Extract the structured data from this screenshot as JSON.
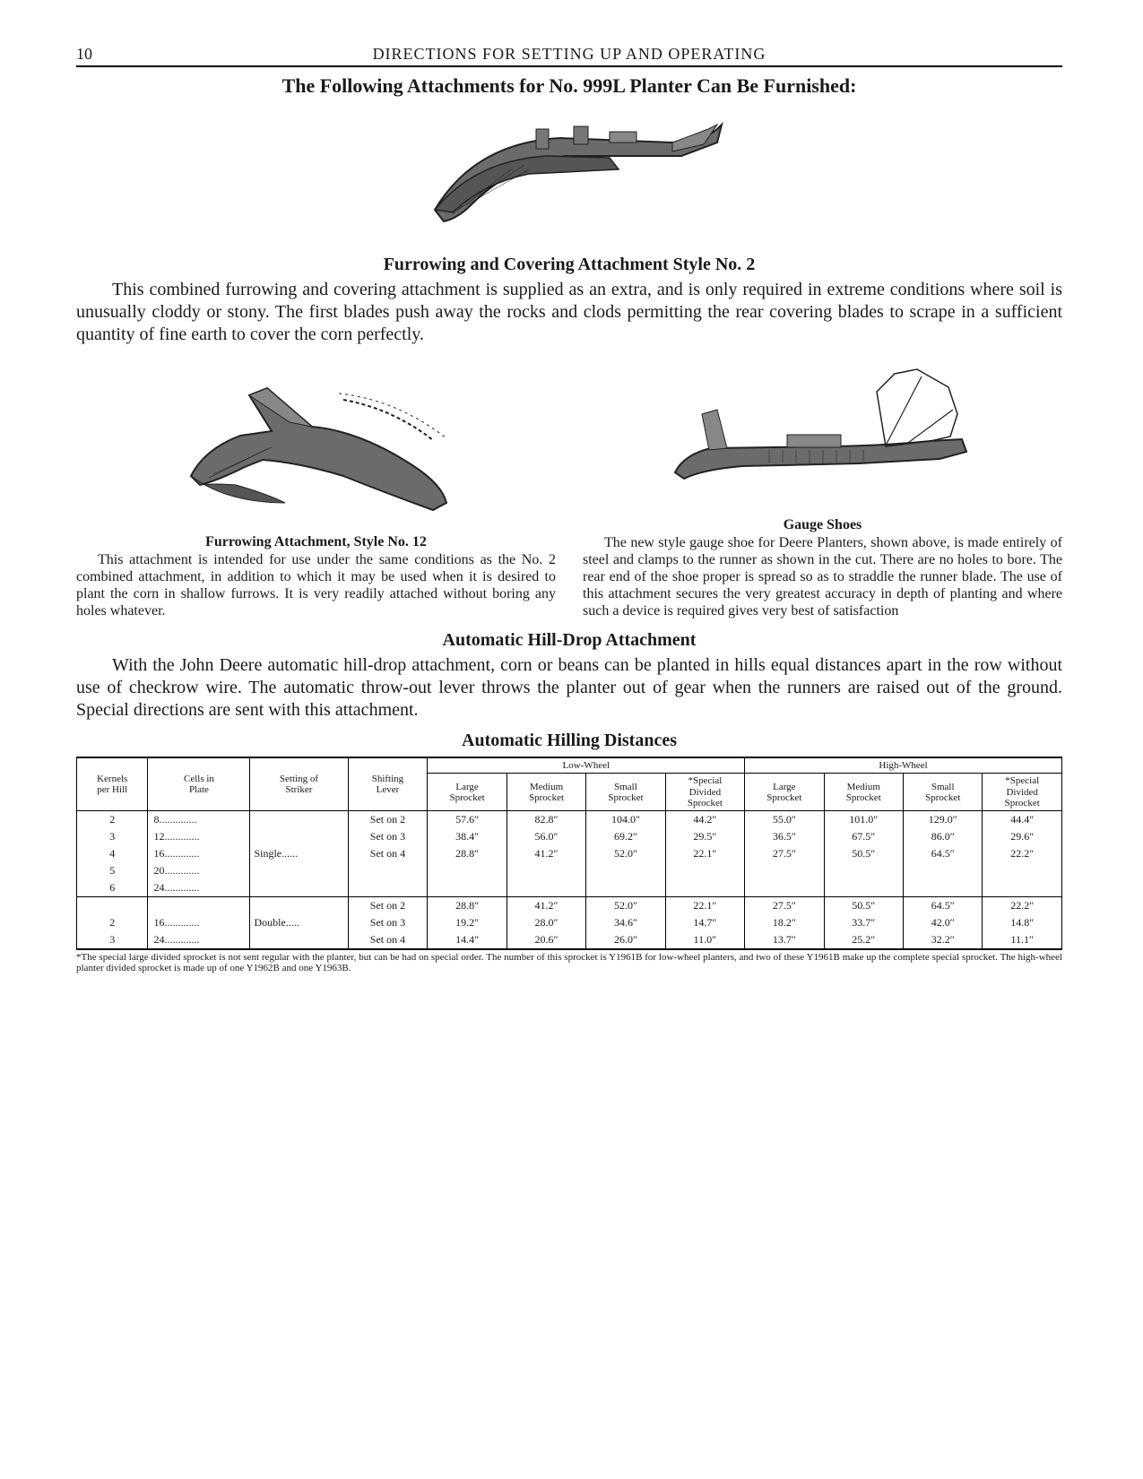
{
  "page_number": "10",
  "running_head": "DIRECTIONS FOR SETTING UP AND OPERATING",
  "title": "The Following Attachments for No. 999L Planter Can Be Furnished:",
  "furrowing2": {
    "heading": "Furrowing and Covering Attachment Style No. 2",
    "body": "This combined furrowing and covering attachment is supplied as an extra, and is only required in extreme conditions where soil is unusually cloddy or stony. The first blades push away the rocks and clods permitting the rear covering blades to scrape in a sufficient quantity of fine earth to cover the corn perfectly."
  },
  "furrowing12": {
    "heading": "Furrowing Attachment, Style No. 12",
    "body": "This attachment is intended for use under the same conditions as the No. 2 combined attachment, in addition to which it may be used when it is desired to plant the corn in shallow furrows. It is very readily attached without boring any holes whatever."
  },
  "gauge_shoes": {
    "heading": "Gauge Shoes",
    "body": "The new style gauge shoe for Deere Planters, shown above, is made entirely of steel and clamps to the runner as shown in the cut. There are no holes to bore. The rear end of the shoe proper is spread so as to straddle the runner blade. The use of this attachment secures the very greatest accuracy in depth of planting and where such a device is required gives very best of satisfaction"
  },
  "hilldrop": {
    "heading": "Automatic Hill-Drop Attachment",
    "body": "With the John Deere automatic hill-drop attachment, corn or beans can be planted in hills equal distances apart in the row without use of checkrow wire. The automatic throw-out lever throws the planter out of gear when the runners are raised out of the ground. Special directions are sent with this attachment."
  },
  "table": {
    "heading": "Automatic Hilling Distances",
    "col_headers": {
      "kernels": "Kernels\nper Hill",
      "cells": "Cells in\nPlate",
      "setting": "Setting of\nStriker",
      "lever": "Shifting\nLever",
      "low_group": "Low-Wheel",
      "high_group": "High-Wheel",
      "large": "Large\nSprocket",
      "medium": "Medium\nSprocket",
      "small": "Small\nSprocket",
      "special": "*Special\nDivided\nSprocket"
    },
    "groups": [
      {
        "setting": "Single......",
        "rows": [
          {
            "kernels": "2",
            "cells": "8..............",
            "lever": "Set on 2",
            "low": [
              "57.6″",
              "82.8″",
              "104.0″",
              "44.2″"
            ],
            "high": [
              "55.0″",
              "101.0″",
              "129.0″",
              "44.4″"
            ]
          },
          {
            "kernels": "3",
            "cells": "12.............",
            "lever": "Set on 3",
            "low": [
              "38.4″",
              "56.0″",
              "69.2″",
              "29.5″"
            ],
            "high": [
              "36.5″",
              "67.5″",
              "86.0″",
              "29.6″"
            ]
          },
          {
            "kernels": "4",
            "cells": "16.............",
            "lever": "Set on 4",
            "low": [
              "28.8″",
              "41.2″",
              "52.0″",
              "22.1″"
            ],
            "high": [
              "27.5″",
              "50.5″",
              "64.5″",
              "22.2″"
            ]
          },
          {
            "kernels": "5",
            "cells": "20.............",
            "lever": "",
            "low": [
              "",
              "",
              "",
              ""
            ],
            "high": [
              "",
              "",
              "",
              ""
            ]
          },
          {
            "kernels": "6",
            "cells": "24.............",
            "lever": "",
            "low": [
              "",
              "",
              "",
              ""
            ],
            "high": [
              "",
              "",
              "",
              ""
            ]
          }
        ]
      },
      {
        "setting": "Double.....",
        "rows": [
          {
            "kernels": "",
            "cells": "",
            "lever": "Set on 2",
            "low": [
              "28.8″",
              "41.2″",
              "52.0″",
              "22.1″"
            ],
            "high": [
              "27.5″",
              "50.5″",
              "64.5″",
              "22.2″"
            ]
          },
          {
            "kernels": "2",
            "cells": "16.............",
            "lever": "Set on 3",
            "low": [
              "19.2″",
              "28.0″",
              "34.6″",
              "14.7″"
            ],
            "high": [
              "18.2″",
              "33.7″",
              "42.0″",
              "14.8″"
            ]
          },
          {
            "kernels": "3",
            "cells": "24.............",
            "lever": "Set on 4",
            "low": [
              "14.4″",
              "20.6″",
              "26.0″",
              "11.0″"
            ],
            "high": [
              "13.7″",
              "25.2″",
              "32.2″",
              "11.1″"
            ]
          }
        ]
      }
    ],
    "footnote": "*The special large divided sprocket is not sent regular with the planter, but can be had on special order. The number of this sprocket is Y1961B for low-wheel planters, and two of these Y1961B make up the complete special sprocket. The high-wheel planter divided sprocket is made up of one Y1962B and one Y1963B."
  },
  "figures": {
    "fig1_alt": "Furrowing and covering attachment engraving",
    "fig2_alt": "Furrowing attachment style 12 engraving",
    "fig3_alt": "Gauge shoes engraving"
  },
  "style": {
    "illustration_fill": "#6b6b6b",
    "illustration_stroke": "#222222",
    "illustration_light": "#c8c8c8",
    "background": "#ffffff"
  }
}
